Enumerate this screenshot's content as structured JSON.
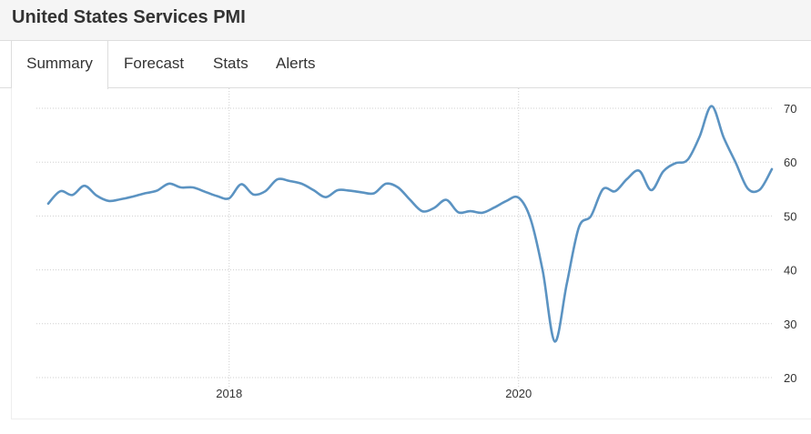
{
  "header": {
    "title": "United States Services PMI"
  },
  "tabs": [
    {
      "label": "Summary",
      "active": true
    },
    {
      "label": "Forecast",
      "active": false
    },
    {
      "label": "Stats",
      "active": false
    },
    {
      "label": "Alerts",
      "active": false
    }
  ],
  "chart_data": {
    "type": "line",
    "title": "",
    "xlabel": "",
    "ylabel": "",
    "x_ticks": [
      "2018",
      "2020"
    ],
    "y_ticks": [
      20,
      30,
      40,
      50,
      60,
      70
    ],
    "ylim": [
      20,
      70
    ],
    "xlim": [
      "2016-09",
      "2021-10"
    ],
    "grid": true,
    "line_color": "#5b93c2",
    "series": [
      {
        "x": [
          "2016-10",
          "2016-11",
          "2016-12",
          "2017-01",
          "2017-02",
          "2017-03",
          "2017-04",
          "2017-05",
          "2017-06",
          "2017-07",
          "2017-08",
          "2017-09",
          "2017-10",
          "2017-11",
          "2017-12",
          "2018-01",
          "2018-02",
          "2018-03",
          "2018-04",
          "2018-05",
          "2018-06",
          "2018-07",
          "2018-08",
          "2018-09",
          "2018-10",
          "2018-11",
          "2018-12",
          "2019-01",
          "2019-02",
          "2019-03",
          "2019-04",
          "2019-05",
          "2019-06",
          "2019-07",
          "2019-08",
          "2019-09",
          "2019-10",
          "2019-11",
          "2019-12",
          "2020-01",
          "2020-02",
          "2020-03",
          "2020-04",
          "2020-05",
          "2020-06",
          "2020-07",
          "2020-08",
          "2020-09",
          "2020-10",
          "2020-11",
          "2020-12",
          "2021-01",
          "2021-02",
          "2021-03",
          "2021-04",
          "2021-05",
          "2021-06",
          "2021-07",
          "2021-08",
          "2021-09",
          "2021-10"
        ],
        "values": [
          52.3,
          54.6,
          53.9,
          55.6,
          53.8,
          52.8,
          53.1,
          53.6,
          54.2,
          54.7,
          56.0,
          55.3,
          55.3,
          54.5,
          53.7,
          53.3,
          55.9,
          54.0,
          54.6,
          56.8,
          56.5,
          56.0,
          54.8,
          53.5,
          54.8,
          54.7,
          54.4,
          54.2,
          56.0,
          55.3,
          53.0,
          50.9,
          51.5,
          53.0,
          50.7,
          50.9,
          50.6,
          51.6,
          52.8,
          53.4,
          49.4,
          39.8,
          26.7,
          37.5,
          47.9,
          50.0,
          55.0,
          54.6,
          56.9,
          58.4,
          54.8,
          58.3,
          59.8,
          60.4,
          64.7,
          70.4,
          64.6,
          59.9,
          55.1,
          54.9,
          58.7
        ]
      }
    ]
  }
}
